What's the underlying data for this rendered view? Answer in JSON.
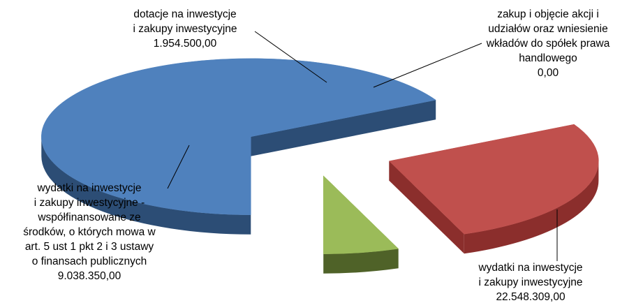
{
  "chart_data": {
    "type": "pie",
    "style": "3d-exploded",
    "legend": "none",
    "slices": [
      {
        "label_lines": [
          "wydatki na inwestycje",
          "i zakupy inwestycyjne"
        ],
        "value": 22548309.0,
        "value_text": "22.548.309,00",
        "color": "#4f81bd",
        "side_color": "#2c4d75"
      },
      {
        "label_lines": [
          "wydatki na inwestycje",
          "i zakupy inwestycyjne -",
          "współfinansowane ze",
          "środków, o których mowa w",
          "art. 5 ust 1 pkt 2 i 3 ustawy",
          "o finansach publicznych"
        ],
        "value": 9038350.0,
        "value_text": "9.038.350,00",
        "color": "#c0504d",
        "side_color": "#8b2e2c"
      },
      {
        "label_lines": [
          "dotacje na inwestycje",
          "i zakupy inwestycyjne"
        ],
        "value": 1954500.0,
        "value_text": "1.954.500,00",
        "color": "#9bbb59",
        "side_color": "#4f6228"
      },
      {
        "label_lines": [
          "zakup i objęcie akcji i",
          "udziałów oraz wniesienie",
          "wkładów do spółek prawa",
          "handlowego"
        ],
        "value": 0.0,
        "value_text": "0,00",
        "color": "#8064a2",
        "side_color": "#4d3b63"
      }
    ]
  }
}
